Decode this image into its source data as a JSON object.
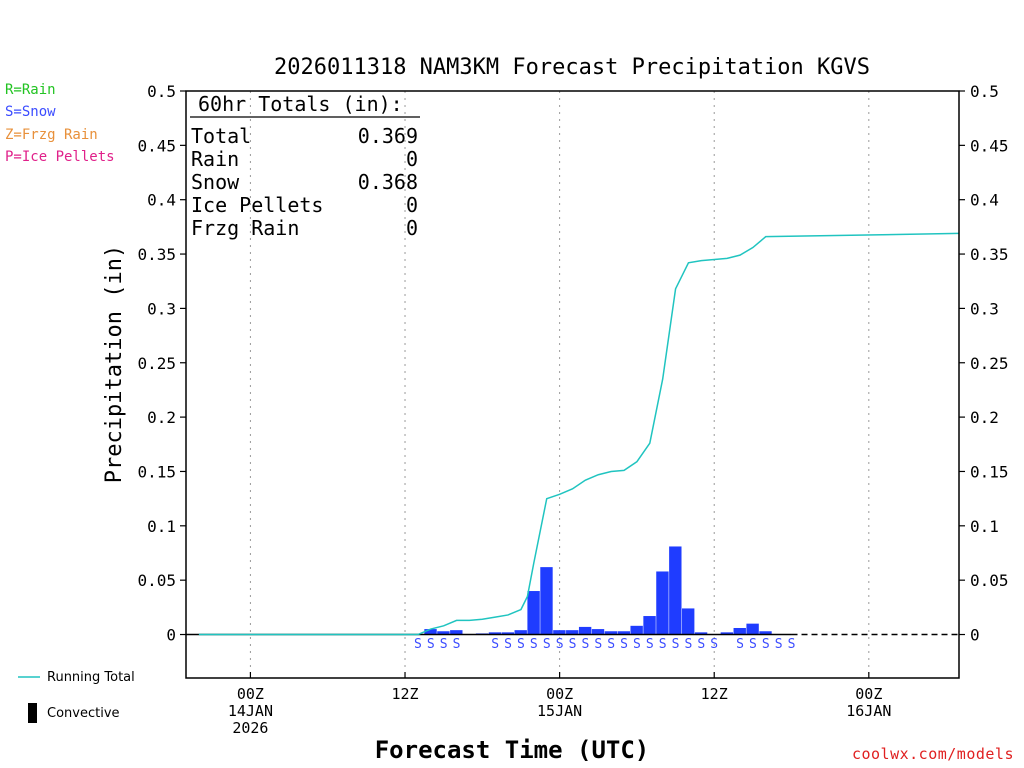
{
  "chart_data": {
    "type": "bar",
    "title": "2026011318 NAM3KM Forecast Precipitation KGVS",
    "ylabel": "Precipitation (in)",
    "xlabel": "Forecast Time (UTC)",
    "ylim": [
      -0.04,
      0.5
    ],
    "y_ticks": [
      0,
      0.05,
      0.1,
      0.15,
      0.2,
      0.25,
      0.3,
      0.35,
      0.4,
      0.45,
      0.5
    ],
    "y_tick_labels": [
      "0",
      "0.05",
      "0.1",
      "0.15",
      "0.2",
      "0.25",
      "0.3",
      "0.35",
      "0.4",
      "0.45",
      "0.5"
    ],
    "x_units": "forecast hour",
    "xlim": [
      -5,
      55
    ],
    "x_ticks": [
      {
        "hour": 0,
        "lines": [
          "00Z",
          "14JAN",
          "2026"
        ]
      },
      {
        "hour": 12,
        "lines": [
          "12Z"
        ]
      },
      {
        "hour": 24,
        "lines": [
          "00Z",
          "15JAN"
        ]
      },
      {
        "hour": 36,
        "lines": [
          "12Z"
        ]
      },
      {
        "hour": 48,
        "lines": [
          "00Z",
          "16JAN"
        ]
      }
    ],
    "grid_x": true,
    "series": [
      {
        "name": "Snow (hourly)",
        "color": "#1f3cff",
        "x": [
          13,
          14,
          15,
          16,
          17,
          18,
          19,
          20,
          21,
          22,
          23,
          24,
          25,
          26,
          27,
          28,
          29,
          30,
          31,
          32,
          33,
          34,
          35,
          36,
          37,
          38,
          39,
          40,
          41
        ],
        "values": [
          0.0,
          0.005,
          0.003,
          0.004,
          0.0,
          0.001,
          0.002,
          0.002,
          0.004,
          0.04,
          0.062,
          0.004,
          0.004,
          0.007,
          0.005,
          0.003,
          0.003,
          0.008,
          0.017,
          0.058,
          0.081,
          0.024,
          0.002,
          0.0,
          0.002,
          0.006,
          0.01,
          0.003,
          0.0
        ]
      },
      {
        "name": "Running Total",
        "color": "#20c4c0",
        "x": [
          -5,
          13,
          14,
          15,
          16,
          17,
          18,
          19,
          20,
          21,
          21.5,
          22,
          23,
          24,
          25,
          26,
          27,
          28,
          29,
          30,
          31,
          32,
          33,
          34,
          35,
          36,
          37,
          38,
          39,
          40,
          55
        ],
        "values": [
          0,
          0,
          0.005,
          0.008,
          0.013,
          0.013,
          0.014,
          0.016,
          0.018,
          0.023,
          0.035,
          0.066,
          0.125,
          0.129,
          0.134,
          0.142,
          0.147,
          0.15,
          0.151,
          0.159,
          0.176,
          0.235,
          0.318,
          0.342,
          0.344,
          0.345,
          0.346,
          0.349,
          0.356,
          0.366,
          0.369
        ]
      }
    ],
    "precip_type_markers": {
      "letter": "S",
      "hours": [
        13,
        14,
        15,
        16,
        19,
        20,
        21,
        22,
        23,
        24,
        25,
        26,
        27,
        28,
        29,
        30,
        31,
        32,
        33,
        34,
        35,
        36,
        38,
        39,
        40,
        41,
        42
      ]
    },
    "totals_box": {
      "header": "60hr Totals (in):",
      "rows": [
        {
          "label": "Total",
          "value": "0.369"
        },
        {
          "label": "Rain",
          "value": "0"
        },
        {
          "label": "Snow",
          "value": "0.368"
        },
        {
          "label": "Ice Pellets",
          "value": "0"
        },
        {
          "label": "Frzg Rain",
          "value": "0"
        }
      ]
    }
  },
  "type_legend": [
    {
      "text": "R=Rain",
      "color": "#22c322"
    },
    {
      "text": "S=Snow",
      "color": "#3b4cff"
    },
    {
      "text": "Z=Frzg Rain",
      "color": "#e8903a"
    },
    {
      "text": "P=Ice Pellets",
      "color": "#e0208a"
    }
  ],
  "bottom_legend": {
    "running_total": "Running Total",
    "convective": "Convective"
  },
  "credit": "coolwx.com/models"
}
